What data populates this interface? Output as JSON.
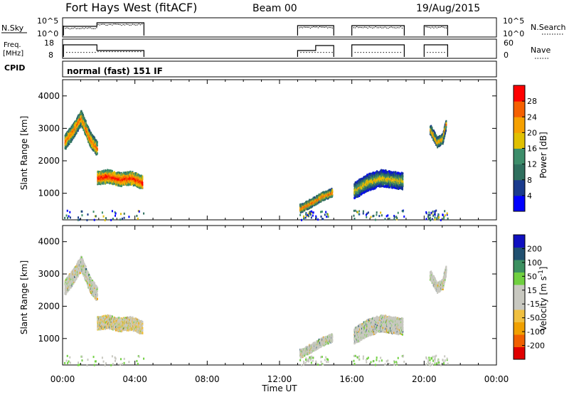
{
  "header": {
    "station": "Fort Hays West (fitACF)",
    "beam": "Beam 00",
    "date": "19/Aug/2015"
  },
  "params": {
    "nsky_label": "N.Sky",
    "nsky_ticks": [
      "10^5",
      "10^0"
    ],
    "nsearch_label": "N.Search",
    "nsearch_ticks": [
      "10^5",
      "10^0"
    ],
    "freq_label_1": "Freq.",
    "freq_label_2": "[MHz]",
    "freq_ticks": [
      "18",
      "8"
    ],
    "nave_label": "Nave",
    "nave_ticks": [
      "60",
      "0"
    ],
    "cpid_label": "CPID",
    "cpid_text": "normal (fast) 151 IF"
  },
  "colors": {
    "power": [
      "#0000ff",
      "#1a3a8c",
      "#2f6f5e",
      "#3d8d6a",
      "#e0c000",
      "#f5a000",
      "#f56000",
      "#ff0000"
    ],
    "velocity": [
      "#e00000",
      "#f06000",
      "#f0a000",
      "#f0c040",
      "#c8c8c0",
      "#c8c8c0",
      "#70d040",
      "#3c9060",
      "#205070",
      "#1010c0"
    ]
  },
  "chart_data": [
    {
      "type": "heatmap",
      "xlabel": "Time UT",
      "ylabel": "Slant Range [km]",
      "xlim": [
        0,
        24
      ],
      "ylim": [
        180,
        4500
      ],
      "x_ticks": [
        "00:00",
        "04:00",
        "08:00",
        "12:00",
        "16:00",
        "20:00",
        "00:00"
      ],
      "y_ticks": [
        1000,
        2000,
        3000,
        4000
      ],
      "colorbar": {
        "label": "Power [dB]",
        "ticks": [
          "28",
          "24",
          "20",
          "16",
          "12",
          "8",
          "4"
        ],
        "range": [
          0,
          32
        ]
      },
      "data_segments_hours": [
        [
          0.05,
          4.5
        ],
        [
          13.0,
          15.0
        ],
        [
          16.0,
          18.9
        ],
        [
          20.0,
          21.3
        ]
      ],
      "echo_regions": [
        {
          "t0": 0.1,
          "t1": 1.9,
          "curve": [
            [
              0.1,
              2600
            ],
            [
              0.5,
              2900
            ],
            [
              1.0,
              3350
            ],
            [
              1.5,
              2700
            ],
            [
              1.9,
              2400
            ]
          ],
          "width": 400,
          "power": 18
        },
        {
          "t0": 1.9,
          "t1": 4.4,
          "curve": [
            [
              1.9,
              1500
            ],
            [
              2.5,
              1550
            ],
            [
              3.2,
              1450
            ],
            [
              3.8,
              1500
            ],
            [
              4.4,
              1350
            ]
          ],
          "width": 350,
          "power": 22
        },
        {
          "t0": 13.1,
          "t1": 14.9,
          "curve": [
            [
              13.1,
              550
            ],
            [
              13.8,
              750
            ],
            [
              14.4,
              950
            ],
            [
              14.9,
              1050
            ]
          ],
          "width": 200,
          "power": 18
        },
        {
          "t0": 16.1,
          "t1": 18.8,
          "curve": [
            [
              16.1,
              1100
            ],
            [
              16.8,
              1350
            ],
            [
              17.6,
              1500
            ],
            [
              18.8,
              1400
            ]
          ],
          "width": 450,
          "power": 12
        },
        {
          "t0": 20.3,
          "t1": 21.2,
          "curve": [
            [
              20.3,
              3000
            ],
            [
              20.7,
              2600
            ],
            [
              21.0,
              2700
            ],
            [
              21.2,
              3200
            ]
          ],
          "width": 250,
          "power": 16
        }
      ]
    },
    {
      "type": "heatmap",
      "xlabel": "Time UT",
      "ylabel": "Slant Range [km]",
      "xlim": [
        0,
        24
      ],
      "ylim": [
        180,
        4500
      ],
      "x_ticks": [
        "00:00",
        "04:00",
        "08:00",
        "12:00",
        "16:00",
        "20:00",
        "00:00"
      ],
      "y_ticks": [
        1000,
        2000,
        3000,
        4000
      ],
      "colorbar": {
        "label": "Velocity [m s",
        "label_sup": "-1",
        "label_end": "]",
        "ticks": [
          "200",
          "100",
          "50",
          "15",
          "-15",
          "-50",
          "-100",
          "-200"
        ],
        "range": [
          -250,
          250
        ]
      }
    }
  ]
}
